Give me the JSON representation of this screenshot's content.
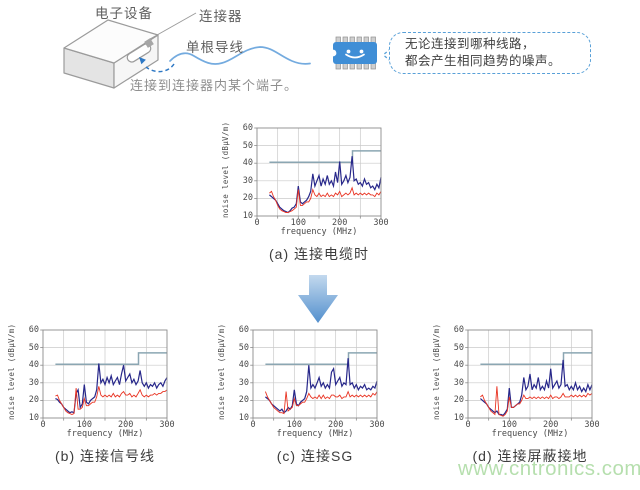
{
  "scene": {
    "device_label": "电子设备",
    "connector_label": "连接器",
    "wire_label": "单根导线",
    "connection_note": "连接到连接器内某个端子。",
    "bubble": {
      "line1": "无论连接到哪种线路，",
      "line2": "都会产生相同趋势的噪声。"
    },
    "colors": {
      "chip_body": "#3f8ed6",
      "bubble_border": "#58a0d8",
      "wire": "#74abdf",
      "dashed_arrow": "#2e78c4",
      "box_outline": "#9b9b9b"
    }
  },
  "arrow": {
    "direction": "down",
    "color_top": "#c3d9ee",
    "color_bottom": "#528fcd"
  },
  "watermark": "www.cntronics.com",
  "chart_defaults": {
    "type": "line",
    "xlabel": "frequency (MHz)",
    "ylabel": "noise level (dBμV/m)",
    "xlim": [
      0,
      300
    ],
    "ylim": [
      10,
      60
    ],
    "xticks": [
      0,
      100,
      200,
      300
    ],
    "yticks": [
      60,
      50,
      40,
      30,
      20,
      10
    ],
    "grid_x": [
      50,
      100,
      150,
      200,
      250
    ],
    "grid_y": [
      20,
      30,
      40,
      50
    ],
    "grid_on": true,
    "legend": "none",
    "x_start": 30,
    "x_step": 5,
    "colors": {
      "limit": "#8ba6b2",
      "series_blue": "#27278a",
      "series_red": "#e93423"
    }
  },
  "chart_data": [
    {
      "id": "a",
      "type": "line",
      "caption": "(a) 连接电缆时",
      "limit_line": [
        [
          30,
          40.5
        ],
        [
          231,
          40.5
        ],
        [
          231,
          47
        ],
        [
          300,
          47
        ]
      ],
      "series": [
        {
          "name": "noise-blue",
          "color": "#27278a",
          "values": [
            22,
            21,
            20,
            19,
            17,
            15,
            14,
            13,
            12.5,
            12,
            13,
            14.5,
            15,
            17,
            27,
            18,
            17,
            18,
            19,
            21,
            24,
            34,
            27,
            30,
            33,
            27,
            31,
            28,
            33,
            28,
            30,
            27,
            35,
            29,
            41,
            28,
            30,
            33,
            29,
            32,
            44,
            30,
            31,
            28,
            29,
            27,
            31,
            28,
            29,
            26,
            27,
            25,
            28,
            26,
            32
          ]
        },
        {
          "name": "noise-red",
          "color": "#e93423",
          "values": [
            23,
            24,
            21,
            19,
            16,
            14,
            13,
            12.5,
            12,
            12,
            12.5,
            13,
            14,
            15,
            25,
            16,
            16,
            17,
            18,
            18,
            20,
            25,
            22,
            21,
            23,
            21,
            22,
            21,
            23,
            21,
            22,
            21,
            23,
            22,
            24,
            21,
            22,
            23,
            22,
            23,
            26,
            22,
            23,
            22,
            23,
            22,
            23,
            22,
            23,
            22,
            22,
            21,
            23,
            22,
            24
          ]
        }
      ]
    },
    {
      "id": "b",
      "type": "line",
      "caption": "(b) 连接信号线",
      "limit_line": [
        [
          30,
          40.5
        ],
        [
          231,
          40.5
        ],
        [
          231,
          47
        ],
        [
          300,
          47
        ]
      ],
      "series": [
        {
          "name": "noise-blue",
          "color": "#27278a",
          "values": [
            21,
            20.5,
            19,
            18,
            16,
            15,
            14,
            13,
            13.5,
            13,
            24,
            26,
            16,
            18,
            29,
            19,
            18,
            20,
            21,
            22,
            26,
            41,
            30,
            32,
            29,
            33,
            30,
            34,
            29,
            31,
            33,
            29,
            35,
            40,
            31,
            33,
            35,
            30,
            32,
            29,
            31,
            37,
            30,
            28,
            30,
            27,
            29,
            28,
            30,
            27,
            29,
            30,
            28,
            31,
            33
          ]
        },
        {
          "name": "noise-red",
          "color": "#e93423",
          "values": [
            22.5,
            23,
            20,
            18,
            16,
            14,
            13,
            12.5,
            12,
            12.5,
            27,
            15,
            15,
            16,
            21,
            17,
            17,
            18,
            19,
            19,
            22,
            28,
            23,
            22,
            23,
            22,
            23,
            22,
            24,
            22,
            23,
            22,
            24,
            25,
            23,
            23,
            24,
            22,
            23,
            22,
            24,
            26,
            23,
            22,
            23,
            22,
            23,
            23,
            24,
            23,
            24,
            24,
            25,
            25,
            26
          ]
        }
      ]
    },
    {
      "id": "c",
      "type": "line",
      "caption": "(c) 连接SG",
      "limit_line": [
        [
          30,
          40.5
        ],
        [
          231,
          40.5
        ],
        [
          231,
          47
        ],
        [
          300,
          47
        ]
      ],
      "series": [
        {
          "name": "noise-blue",
          "color": "#27278a",
          "values": [
            22,
            21,
            20,
            18,
            17,
            16,
            15,
            14,
            15,
            13,
            14,
            16,
            15,
            17,
            26,
            18,
            17,
            19,
            20,
            21,
            25,
            40,
            27,
            29,
            27,
            30,
            33,
            28,
            30,
            27,
            29,
            27,
            36,
            38,
            29,
            31,
            33,
            28,
            30,
            29,
            44,
            29,
            30,
            27,
            29,
            26,
            28,
            27,
            29,
            26,
            27,
            26,
            28,
            27,
            31
          ]
        },
        {
          "name": "noise-red",
          "color": "#e93423",
          "values": [
            25,
            22,
            20,
            18,
            16,
            15,
            14,
            13,
            13,
            12.5,
            25,
            14,
            15,
            16,
            21,
            17,
            17,
            18,
            19,
            19,
            21,
            24,
            22,
            21,
            22,
            21,
            23,
            21,
            23,
            21,
            22,
            21,
            23,
            23,
            22,
            22,
            23,
            21,
            22,
            22,
            25,
            22,
            23,
            22,
            23,
            22,
            23,
            22,
            23,
            22,
            23,
            22,
            24,
            23,
            25
          ]
        }
      ]
    },
    {
      "id": "d",
      "type": "line",
      "caption": "(d) 连接屏蔽接地",
      "limit_line": [
        [
          30,
          40.5
        ],
        [
          231,
          40.5
        ],
        [
          231,
          47
        ],
        [
          300,
          47
        ]
      ],
      "series": [
        {
          "name": "noise-blue",
          "color": "#27278a",
          "values": [
            21,
            20,
            19,
            18,
            16,
            15,
            14,
            13,
            14,
            12,
            12,
            11.5,
            13,
            15,
            27,
            16,
            16,
            17,
            18,
            19,
            23,
            33,
            26,
            28,
            35,
            26,
            29,
            27,
            33,
            26,
            28,
            26,
            31,
            27,
            38,
            27,
            29,
            31,
            27,
            29,
            43,
            28,
            29,
            26,
            28,
            26,
            30,
            26,
            28,
            25,
            27,
            25,
            29,
            26,
            29
          ]
        },
        {
          "name": "noise-red",
          "color": "#e93423",
          "values": [
            22,
            23,
            20,
            18,
            16,
            14,
            13,
            12,
            28,
            12,
            11.5,
            11,
            12,
            14,
            22,
            16,
            16,
            17,
            18,
            18,
            20,
            23,
            21,
            21,
            22,
            21,
            22,
            21,
            22,
            21,
            22,
            21,
            22,
            21,
            23,
            21,
            22,
            22,
            21,
            22,
            24,
            22,
            22,
            22,
            23,
            22,
            23,
            22,
            23,
            22,
            23,
            22,
            24,
            23,
            24
          ]
        }
      ]
    }
  ]
}
